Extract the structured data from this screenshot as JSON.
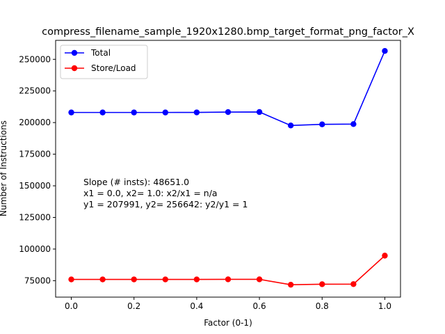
{
  "chart_data": {
    "type": "line",
    "title": "compress_filename_sample_1920x1280.bmp_target_format_png_factor_X",
    "xlabel": "Factor (0-1)",
    "ylabel": "Number of Instructions",
    "xlim": [
      -0.05,
      1.05
    ],
    "ylim": [
      62000,
      265000
    ],
    "xticks": [
      0.0,
      0.2,
      0.4,
      0.6,
      0.8,
      1.0
    ],
    "xtick_labels": [
      "0.0",
      "0.2",
      "0.4",
      "0.6",
      "0.8",
      "1.0"
    ],
    "yticks": [
      75000,
      100000,
      125000,
      150000,
      175000,
      200000,
      225000,
      250000
    ],
    "ytick_labels": [
      "75000",
      "100000",
      "125000",
      "150000",
      "175000",
      "200000",
      "225000",
      "250000"
    ],
    "grid": false,
    "legend_position": "top-left",
    "x": [
      0.0,
      0.1,
      0.2,
      0.3,
      0.4,
      0.5,
      0.6,
      0.7,
      0.8,
      0.9,
      1.0
    ],
    "series": [
      {
        "name": "Total",
        "color": "#0000ff",
        "values": [
          207991,
          207991,
          207991,
          207991,
          208050,
          208300,
          208350,
          197700,
          198600,
          198800,
          256642
        ]
      },
      {
        "name": "Store/Load",
        "color": "#ff0000",
        "values": [
          76000,
          76000,
          76000,
          76000,
          76000,
          76050,
          76050,
          71800,
          72200,
          72300,
          94800
        ]
      }
    ],
    "annotation": [
      "Slope (# insts): 48651.0",
      "x1 = 0.0, x2= 1.0: x2/x1 = n/a",
      "y1 = 207991, y2= 256642: y2/y1 = 1"
    ]
  }
}
